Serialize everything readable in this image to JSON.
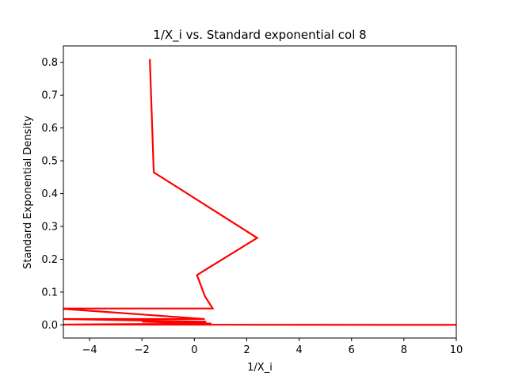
{
  "chart_data": {
    "type": "line",
    "title": "1/X_i vs. Standard exponential col 8",
    "xlabel": "1/X_i",
    "ylabel": "Standard Exponential Density",
    "xlim": [
      -5,
      10
    ],
    "ylim": [
      -0.04,
      0.85
    ],
    "xticks": [
      -4,
      -2,
      0,
      2,
      4,
      6,
      8,
      10
    ],
    "xtick_labels": [
      "−4",
      "−2",
      "0",
      "2",
      "4",
      "6",
      "8",
      "10"
    ],
    "yticks": [
      0.0,
      0.1,
      0.2,
      0.3,
      0.4,
      0.5,
      0.6,
      0.7,
      0.8
    ],
    "ytick_labels": [
      "0.0",
      "0.1",
      "0.2",
      "0.3",
      "0.4",
      "0.5",
      "0.6",
      "0.7",
      "0.8"
    ],
    "grid": false,
    "series": [
      {
        "color": "#ff0000",
        "x": [
          -1.7,
          -1.55,
          2.4,
          0.1,
          0.4,
          0.7,
          -5.2,
          0.4,
          -5.2,
          0.45,
          -2.0,
          0.65,
          -5.2,
          10.5
        ],
        "y": [
          0.81,
          0.465,
          0.265,
          0.152,
          0.088,
          0.05,
          0.05,
          0.018,
          0.018,
          0.01,
          0.01,
          0.004,
          0.001,
          0.0
        ]
      }
    ]
  }
}
